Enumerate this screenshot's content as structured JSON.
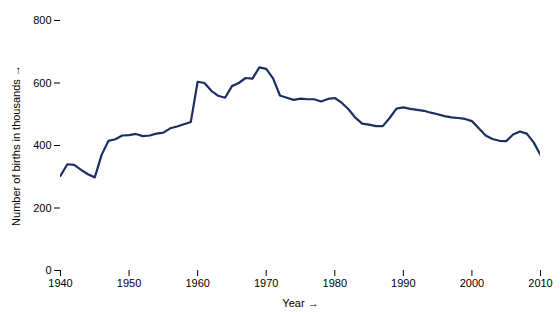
{
  "chart_data": {
    "type": "line",
    "x": [
      1940,
      1941,
      1942,
      1943,
      1944,
      1945,
      1946,
      1947,
      1948,
      1949,
      1950,
      1951,
      1952,
      1953,
      1954,
      1955,
      1956,
      1957,
      1958,
      1959,
      1960,
      1961,
      1962,
      1963,
      1964,
      1965,
      1966,
      1967,
      1968,
      1969,
      1970,
      1971,
      1972,
      1973,
      1974,
      1975,
      1976,
      1977,
      1978,
      1979,
      1980,
      1981,
      1982,
      1983,
      1984,
      1985,
      1986,
      1987,
      1988,
      1989,
      1990,
      1991,
      1992,
      1993,
      1994,
      1995,
      1996,
      1997,
      1998,
      1999,
      2000,
      2001,
      2002,
      2003,
      2004,
      2005,
      2006,
      2007,
      2008,
      2009,
      2010
    ],
    "values": [
      303,
      340,
      338,
      322,
      308,
      298,
      370,
      415,
      420,
      432,
      433,
      437,
      430,
      432,
      438,
      441,
      455,
      461,
      468,
      475,
      604,
      600,
      575,
      559,
      553,
      590,
      600,
      616,
      614,
      650,
      645,
      615,
      560,
      553,
      546,
      550,
      548,
      548,
      541,
      549,
      552,
      537,
      516,
      489,
      470,
      467,
      462,
      462,
      488,
      518,
      522,
      517,
      514,
      511,
      505,
      500,
      494,
      490,
      488,
      485,
      478,
      455,
      432,
      421,
      415,
      414,
      435,
      445,
      438,
      410,
      370
    ],
    "color": "#1a3060",
    "xlabel": "Year",
    "ylabel": "Number of births in thousands",
    "xlim": [
      1940,
      2010
    ],
    "ylim": [
      0,
      800
    ],
    "xticks": [
      1940,
      1950,
      1960,
      1970,
      1980,
      1990,
      2000,
      2010
    ],
    "yticks": [
      0,
      200,
      400,
      600,
      800
    ],
    "grid": false
  }
}
